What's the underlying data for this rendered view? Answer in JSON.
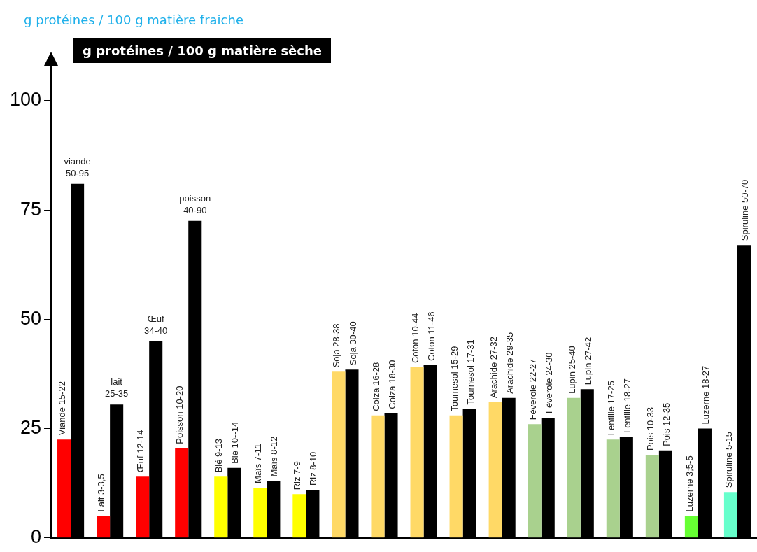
{
  "chart_data": {
    "type": "bar",
    "ylabel": "g protéines / 100 g matière fraiche",
    "categories": [
      null,
      null,
      null,
      null,
      null,
      null,
      null,
      null,
      null,
      null,
      null,
      null,
      null,
      null,
      null,
      null,
      null,
      null
    ],
    "series": [
      {
        "colors": [
          "#ff0000",
          "#ff0000",
          "#ff0000",
          "#ff0000",
          "#ffff00",
          "#ffff00",
          "#ffff00",
          "#ffd966",
          "#ffd966",
          "#ffd966",
          "#ffd966",
          "#ffd966",
          "#a9d18e",
          "#a9d18e",
          "#a9d18e",
          "#a9d18e",
          "#66ff33",
          "#66ffcc"
        ],
        "values": [
          22.5,
          5,
          14,
          20.5,
          14,
          11.5,
          10,
          38,
          28,
          39,
          28,
          31,
          26,
          32,
          22.5,
          19,
          5,
          10.5
        ],
        "value_labels": [
          "Viande 15-22",
          "Lait 3-3,5",
          "Œuf 12-14",
          "Poisson 10-20",
          "Blé 9-13",
          "Maïs 7-11",
          "Riz 7-9",
          "Soja 28-38",
          "Colza 16-28",
          "Coton 10-44",
          "Tournesol 15-29",
          "Arachide 27-32",
          "Fèverole 22-27",
          "Lupin 25-40",
          "Lentille 17-25",
          "Pois 10-33",
          "Luzerne 3;5-5",
          "Spiruline 5-15"
        ]
      },
      {
        "name": "g protéines / 100 g matière sèche",
        "color": "#000000",
        "values": [
          81,
          30.5,
          45,
          72.5,
          16,
          13,
          11,
          38.5,
          28.5,
          39.5,
          29.5,
          32,
          27.5,
          34,
          23,
          20,
          25,
          67
        ],
        "value_labels": [
          "viande\n50-95",
          "lait\n25-35",
          "Œuf\n34-40",
          "poisson\n40-90",
          "Blé 10--14",
          "Maïs 8-12",
          "Riz 8-10",
          "Soja 30-40",
          "Colza 18-30",
          "Coton 11-46",
          "Tournesol 17-31",
          "Arachide 29-35",
          "Fèverole 24-30",
          "Lupin 27-42",
          "Lentille 18-27",
          "Pois 12-35",
          "Luzerne 18-27",
          "Spiruline 50-70"
        ]
      }
    ],
    "ylim": [
      0,
      108
    ],
    "yticks": [
      0,
      25,
      50,
      75,
      100
    ],
    "tick_labels": "y",
    "grid": false,
    "legend": "top left"
  }
}
